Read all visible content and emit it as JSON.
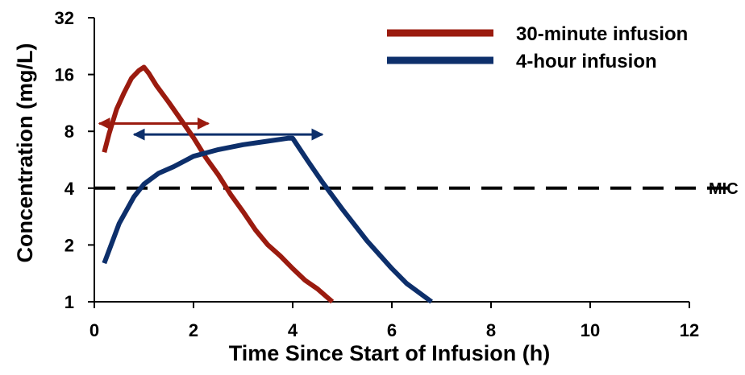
{
  "chart_data": {
    "type": "line",
    "title": "",
    "xlabel": "Time Since Start of Infusion (h)",
    "ylabel": "Concentration (mg/L)",
    "xlim": [
      0,
      12
    ],
    "ylim": [
      1,
      32
    ],
    "y_scale": "log2",
    "x_ticks": [
      0,
      2,
      4,
      6,
      8,
      10,
      12
    ],
    "y_ticks": [
      1,
      2,
      4,
      8,
      16,
      32
    ],
    "grid": false,
    "legend_position": "top-right",
    "series": [
      {
        "name": "30-minute infusion",
        "color": "#9b1b0f",
        "x": [
          0.2,
          0.3,
          0.45,
          0.6,
          0.75,
          0.9,
          1.0,
          1.1,
          1.25,
          1.5,
          1.75,
          2.0,
          2.25,
          2.5,
          2.75,
          3.0,
          3.25,
          3.5,
          3.75,
          4.0,
          4.25,
          4.5,
          4.8
        ],
        "y": [
          6.2,
          7.8,
          10.5,
          12.8,
          15.3,
          16.8,
          17.5,
          16.2,
          14.0,
          11.4,
          9.2,
          7.4,
          5.8,
          4.7,
          3.7,
          3.0,
          2.4,
          2.0,
          1.75,
          1.5,
          1.3,
          1.17,
          1.0
        ]
      },
      {
        "name": "4-hour infusion",
        "color": "#0d2f6b",
        "x": [
          0.2,
          0.5,
          0.8,
          1.0,
          1.3,
          1.6,
          2.0,
          2.5,
          3.0,
          3.5,
          3.9,
          4.0,
          4.3,
          4.6,
          5.0,
          5.5,
          6.0,
          6.3,
          6.8
        ],
        "y": [
          1.6,
          2.6,
          3.6,
          4.2,
          4.8,
          5.2,
          5.9,
          6.4,
          6.8,
          7.1,
          7.35,
          7.35,
          5.6,
          4.3,
          3.1,
          2.1,
          1.5,
          1.25,
          1.0
        ]
      }
    ],
    "reference_lines": [
      {
        "label": "MIC",
        "y": 4,
        "style": "dashed",
        "color": "#000000"
      }
    ],
    "arrows": [
      {
        "from_x": 0.1,
        "to_x": 2.3,
        "y": 8.8,
        "color": "#9b1b0f"
      },
      {
        "from_x": 0.8,
        "to_x": 4.6,
        "y": 7.7,
        "color": "#0d2f6b"
      }
    ]
  }
}
